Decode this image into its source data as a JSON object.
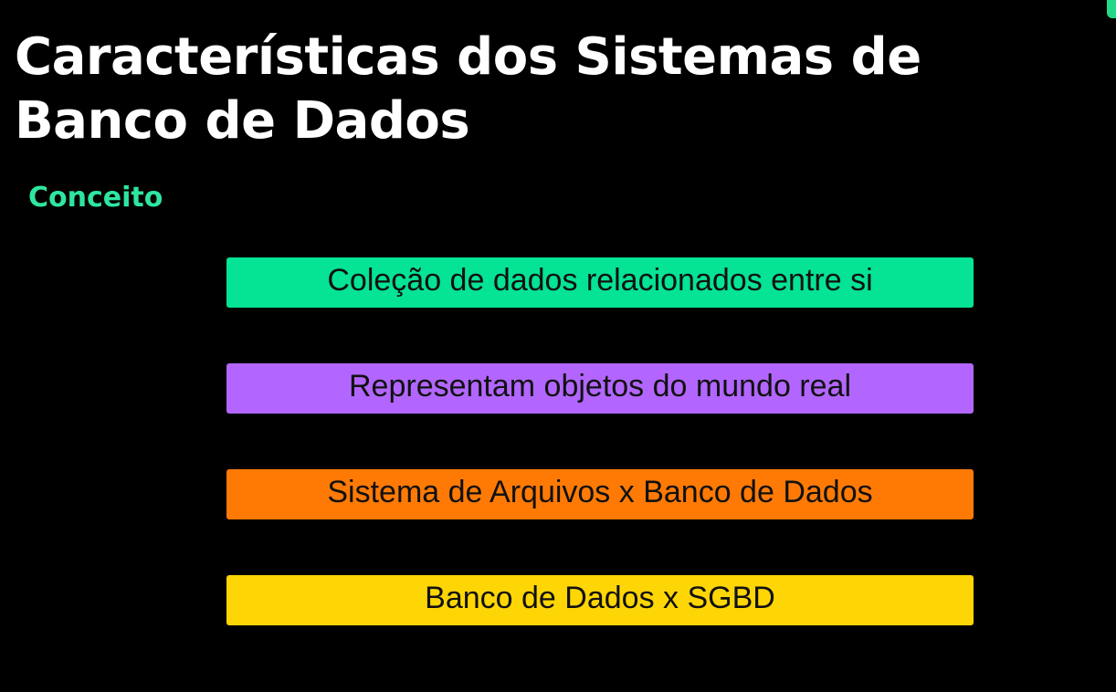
{
  "slide": {
    "title": "Características dos Sistemas de Banco de Dados",
    "subtitle": "Conceito",
    "items": [
      {
        "label": "Coleção de dados relacionados entre si",
        "color": "#05e394"
      },
      {
        "label": "Representam objetos do mundo real",
        "color": "#b266ff"
      },
      {
        "label": "Sistema de Arquivos x Banco de Dados",
        "color": "#ff7a05"
      },
      {
        "label": "Banco de Dados x SGBD",
        "color": "#ffd605"
      }
    ]
  }
}
